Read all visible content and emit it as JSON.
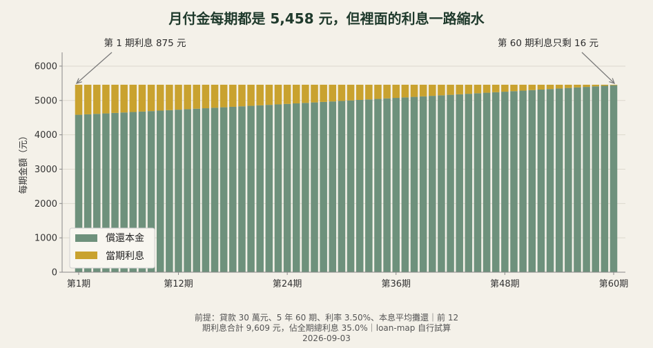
{
  "chart_data": {
    "type": "bar",
    "stacked": true,
    "title": "月付金每期都是 5,458 元，但裡面的利息一路縮水",
    "ylabel": "每期金額（元）",
    "xlabel": "",
    "ylim": [
      0,
      6400
    ],
    "yticks": [
      0,
      1000,
      2000,
      3000,
      4000,
      5000,
      6000
    ],
    "xtick_labels": [
      "第1期",
      "第12期",
      "第24期",
      "第36期",
      "第48期",
      "第60期"
    ],
    "xtick_periods": [
      1,
      12,
      24,
      36,
      48,
      60
    ],
    "grid": true,
    "legend_position": "bottom-left",
    "n_periods": 60,
    "payment": 5458,
    "interest_first": 875,
    "interest_last": 16,
    "series": [
      {
        "name": "償還本金",
        "color": "#6e917c",
        "values": [
          4583,
          4596,
          4610,
          4623,
          4637,
          4650,
          4664,
          4677,
          4691,
          4705,
          4718,
          4732,
          4746,
          4760,
          4774,
          4788,
          4802,
          4816,
          4830,
          4844,
          4858,
          4872,
          4886,
          4900,
          4915,
          4929,
          4943,
          4958,
          4972,
          4987,
          5001,
          5016,
          5030,
          5045,
          5060,
          5075,
          5089,
          5104,
          5119,
          5134,
          5149,
          5164,
          5179,
          5194,
          5210,
          5225,
          5240,
          5255,
          5271,
          5286,
          5302,
          5317,
          5333,
          5348,
          5364,
          5380,
          5395,
          5411,
          5427,
          5442
        ]
      },
      {
        "name": "當期利息",
        "color": "#c9a22f",
        "values": [
          875,
          862,
          848,
          835,
          821,
          808,
          794,
          781,
          767,
          753,
          740,
          726,
          712,
          698,
          684,
          670,
          656,
          642,
          628,
          614,
          600,
          586,
          572,
          558,
          543,
          529,
          515,
          500,
          486,
          471,
          457,
          442,
          428,
          413,
          398,
          383,
          369,
          354,
          339,
          324,
          309,
          294,
          279,
          264,
          248,
          233,
          218,
          203,
          187,
          172,
          156,
          141,
          125,
          110,
          94,
          78,
          63,
          47,
          31,
          16
        ]
      }
    ],
    "annotations": [
      {
        "text": "第 1 期利息 875 元",
        "period": 1
      },
      {
        "text": "第 60 期利息只剩 16 元",
        "period": 60
      }
    ],
    "footnote": [
      "前提：貸款 30 萬元、5 年 60 期、利率 3.50%、本息平均攤還｜前 12",
      "期利息合計 9,609 元，佔全期總利息 35.0%｜loan-map 自行試算",
      "2026-09-03"
    ]
  }
}
